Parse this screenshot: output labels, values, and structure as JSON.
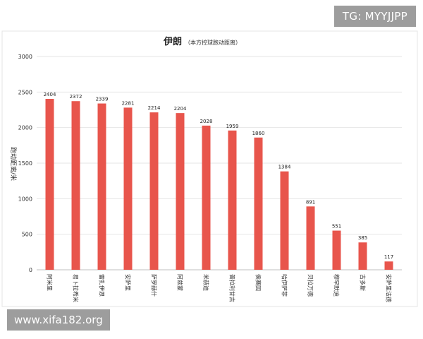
{
  "watermarks": {
    "top_right": "TG: MYYJJPP",
    "bottom_left": "www.xifa182.org"
  },
  "chart_data": {
    "type": "bar",
    "title": "伊朗",
    "subtitle": "（本方控球跑动距离）",
    "ylabel": "跑动距离/米",
    "ylim": [
      0,
      3000
    ],
    "yticks": [
      0,
      500,
      1000,
      1500,
      2000,
      2500,
      3000
    ],
    "grid": true,
    "bar_color": "#e8554c",
    "categories": [
      "阿米里",
      "易卜拉希米",
      "雷扎伊恩",
      "安萨里",
      "萨罗赫什",
      "阿兹蒙",
      "米赫迪",
      "普拉利甘吉",
      "侯赛因",
      "哈伊萨菲",
      "贝拉万德",
      "穆罕默迪",
      "古多斯",
      "安萨里法德"
    ],
    "values": [
      2404,
      2372,
      2339,
      2281,
      2214,
      2204,
      2028,
      1959,
      1860,
      1384,
      891,
      551,
      385,
      117
    ]
  }
}
